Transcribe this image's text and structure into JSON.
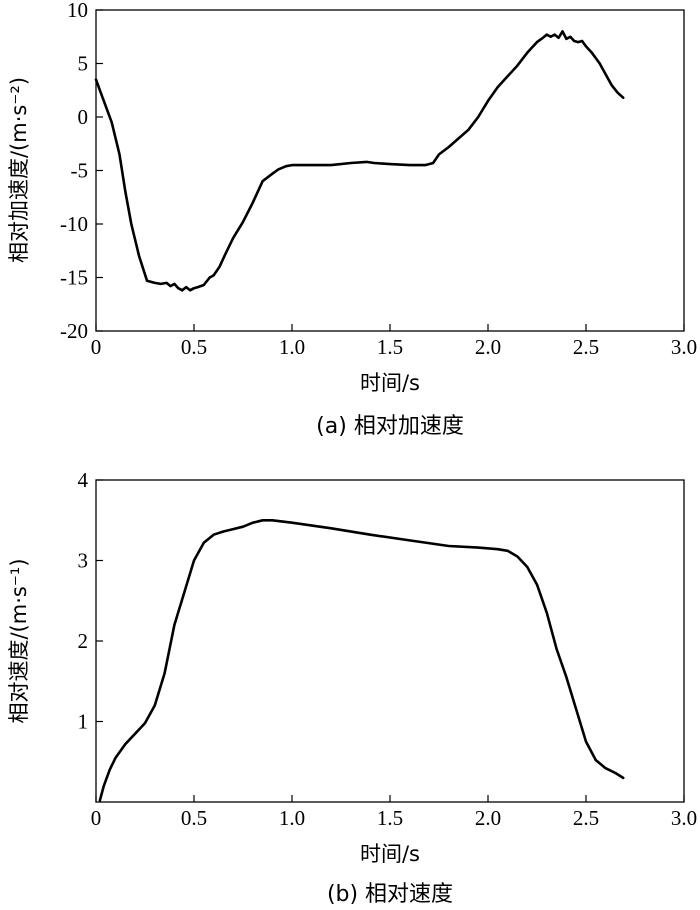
{
  "chart_data": [
    {
      "type": "line",
      "caption": "(a) 相对加速度",
      "xlabel": "时间/s",
      "ylabel": "相对加速度/(m·s⁻²)",
      "xlim": [
        0,
        3.0
      ],
      "ylim": [
        -20,
        10
      ],
      "xticks": [
        "0",
        "0.5",
        "1.0",
        "1.5",
        "2.0",
        "2.5",
        "3.0"
      ],
      "yticks": [
        "-20",
        "-15",
        "-10",
        "-5",
        "0",
        "5",
        "10"
      ],
      "grid": false,
      "series": [
        {
          "color": "#000000",
          "x": [
            0,
            0.02,
            0.05,
            0.08,
            0.12,
            0.15,
            0.18,
            0.22,
            0.26,
            0.3,
            0.33,
            0.36,
            0.38,
            0.4,
            0.42,
            0.44,
            0.46,
            0.48,
            0.5,
            0.52,
            0.55,
            0.58,
            0.6,
            0.63,
            0.66,
            0.7,
            0.75,
            0.8,
            0.85,
            0.9,
            0.93,
            0.97,
            1.0,
            1.05,
            1.1,
            1.2,
            1.3,
            1.38,
            1.42,
            1.5,
            1.6,
            1.68,
            1.72,
            1.75,
            1.8,
            1.85,
            1.9,
            1.95,
            2.0,
            2.05,
            2.1,
            2.15,
            2.2,
            2.25,
            2.28,
            2.3,
            2.32,
            2.34,
            2.36,
            2.38,
            2.4,
            2.42,
            2.44,
            2.46,
            2.48,
            2.5,
            2.53,
            2.57,
            2.6,
            2.63,
            2.66,
            2.69
          ],
          "y": [
            3.5,
            2.5,
            1.0,
            -0.5,
            -3.5,
            -7.0,
            -10.0,
            -13.0,
            -15.3,
            -15.5,
            -15.6,
            -15.5,
            -15.8,
            -15.6,
            -16.0,
            -16.2,
            -15.9,
            -16.2,
            -16.0,
            -15.9,
            -15.7,
            -15.0,
            -14.8,
            -14.0,
            -12.8,
            -11.3,
            -9.8,
            -8.0,
            -6.0,
            -5.3,
            -4.9,
            -4.6,
            -4.5,
            -4.5,
            -4.5,
            -4.5,
            -4.3,
            -4.2,
            -4.3,
            -4.4,
            -4.5,
            -4.5,
            -4.3,
            -3.5,
            -2.8,
            -2.0,
            -1.2,
            0.0,
            1.5,
            2.8,
            3.8,
            4.8,
            6.0,
            7.0,
            7.4,
            7.7,
            7.5,
            7.7,
            7.4,
            8.0,
            7.3,
            7.5,
            7.1,
            7.0,
            7.1,
            6.6,
            6.0,
            5.0,
            4.0,
            3.0,
            2.3,
            1.8
          ]
        }
      ]
    },
    {
      "type": "line",
      "caption": "(b) 相对速度",
      "xlabel": "时间/s",
      "ylabel": "相对速度/(m·s⁻¹)",
      "xlim": [
        0,
        3.0
      ],
      "ylim": [
        0,
        4
      ],
      "xticks": [
        "0",
        "0.5",
        "1.0",
        "1.5",
        "2.0",
        "2.5",
        "3.0"
      ],
      "yticks": [
        "1",
        "2",
        "3",
        "4"
      ],
      "grid": false,
      "series": [
        {
          "color": "#000000",
          "x": [
            0.02,
            0.04,
            0.07,
            0.1,
            0.15,
            0.2,
            0.25,
            0.3,
            0.35,
            0.4,
            0.45,
            0.5,
            0.55,
            0.6,
            0.65,
            0.7,
            0.75,
            0.8,
            0.85,
            0.9,
            1.0,
            1.2,
            1.4,
            1.6,
            1.8,
            1.95,
            2.05,
            2.1,
            2.15,
            2.2,
            2.25,
            2.3,
            2.35,
            2.4,
            2.45,
            2.5,
            2.55,
            2.6,
            2.65,
            2.69
          ],
          "y": [
            0.02,
            0.2,
            0.4,
            0.55,
            0.72,
            0.85,
            0.98,
            1.2,
            1.6,
            2.2,
            2.6,
            3.0,
            3.22,
            3.32,
            3.36,
            3.39,
            3.42,
            3.47,
            3.5,
            3.5,
            3.47,
            3.4,
            3.32,
            3.25,
            3.18,
            3.16,
            3.14,
            3.12,
            3.05,
            2.92,
            2.7,
            2.35,
            1.9,
            1.55,
            1.15,
            0.75,
            0.52,
            0.42,
            0.36,
            0.3
          ]
        }
      ]
    }
  ]
}
